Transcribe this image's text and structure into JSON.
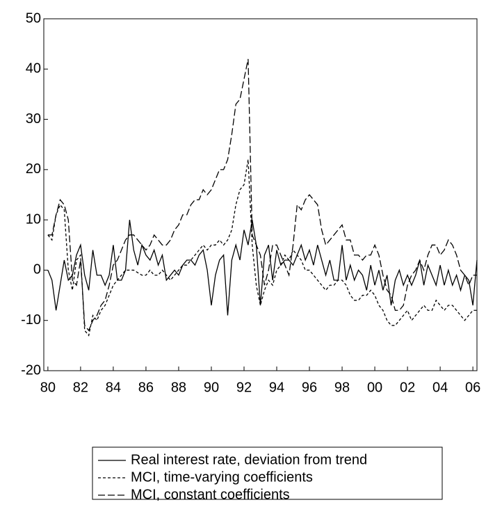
{
  "chart_data": {
    "type": "line",
    "x": [
      1980,
      1980.25,
      1980.5,
      1980.75,
      1981,
      1981.25,
      1981.5,
      1981.75,
      1982,
      1982.25,
      1982.5,
      1982.75,
      1983,
      1983.25,
      1983.5,
      1983.75,
      1984,
      1984.25,
      1984.5,
      1984.75,
      1985,
      1985.25,
      1985.5,
      1985.75,
      1986,
      1986.25,
      1986.5,
      1986.75,
      1987,
      1987.25,
      1987.5,
      1987.75,
      1988,
      1988.25,
      1988.5,
      1988.75,
      1989,
      1989.25,
      1989.5,
      1989.75,
      1990,
      1990.25,
      1990.5,
      1990.75,
      1991,
      1991.25,
      1991.5,
      1991.75,
      1992,
      1992.25,
      1992.5,
      1992.75,
      1993,
      1993.25,
      1993.5,
      1993.75,
      1994,
      1994.25,
      1994.5,
      1994.75,
      1995,
      1995.25,
      1995.5,
      1995.75,
      1996,
      1996.25,
      1996.5,
      1996.75,
      1997,
      1997.25,
      1997.5,
      1997.75,
      1998,
      1998.25,
      1998.5,
      1998.75,
      1999,
      1999.25,
      1999.5,
      1999.75,
      2000,
      2000.25,
      2000.5,
      2000.75,
      2001,
      2001.25,
      2001.5,
      2001.75,
      2002,
      2002.25,
      2002.5,
      2002.75,
      2003,
      2003.25,
      2003.5,
      2003.75,
      2004,
      2004.25,
      2004.5,
      2004.75,
      2005,
      2005.25,
      2005.5,
      2005.75,
      2006,
      2006.25
    ],
    "series": [
      {
        "name": "Real interest rate, deviation from trend",
        "color": "#000000",
        "line_style": "solid",
        "values": [
          0,
          -2,
          -8,
          -3,
          2,
          -2,
          -1,
          3,
          5,
          -1,
          -4,
          4,
          -1,
          -1,
          -3,
          -1,
          5,
          -2,
          -2,
          0,
          10,
          4,
          1,
          5,
          3,
          2,
          4,
          1,
          3,
          -2,
          -1,
          0,
          -1,
          1,
          2,
          2,
          1,
          3,
          4,
          0,
          -7,
          -1,
          2,
          3,
          -9,
          2,
          5,
          2,
          8,
          5,
          10,
          5,
          -7,
          3,
          5,
          -2,
          4,
          1,
          2,
          2,
          1,
          3,
          5,
          2,
          4,
          1,
          5,
          2,
          -1,
          2,
          -2,
          -2,
          5,
          -2,
          1,
          -2,
          0,
          -1,
          -4,
          1,
          -3,
          0,
          -4,
          -1,
          -7,
          -2,
          0,
          -3,
          -1,
          -3,
          -1,
          2,
          -3,
          1,
          -1,
          -3,
          1,
          -3,
          0,
          -3,
          -1,
          -4,
          -1,
          -2,
          -7,
          2
        ]
      },
      {
        "name": "MCI, time-varying coefficients",
        "color": "#000000",
        "line_style": "dotted",
        "values": [
          7,
          6,
          11,
          13,
          12,
          0,
          -4,
          2,
          3,
          -12,
          -13,
          -9,
          -10,
          -8,
          -7,
          -5,
          -3,
          -2,
          -1,
          0,
          0,
          0,
          -0.5,
          -1,
          -1,
          0,
          -1,
          -1,
          0,
          -1,
          -2,
          -1,
          0,
          1,
          1,
          2,
          3,
          4,
          5,
          4,
          5,
          5,
          6,
          5,
          6,
          8,
          13,
          16,
          17,
          22,
          5,
          -3,
          -7,
          -4,
          -2,
          -3,
          0,
          1,
          3,
          2,
          4,
          3,
          2,
          0,
          0,
          -1,
          -2,
          -3,
          -4,
          -3,
          -3,
          -2,
          -2,
          -3,
          -5,
          -6,
          -6,
          -5,
          -5,
          -4,
          -5,
          -7,
          -8,
          -10,
          -11,
          -11,
          -10,
          -9,
          -8,
          -10,
          -9,
          -8,
          -7,
          -8,
          -8,
          -6,
          -7,
          -8,
          -7,
          -7,
          -8,
          -9,
          -10,
          -9,
          -8,
          -8
        ]
      },
      {
        "name": "MCI, constant coefficients",
        "color": "#000000",
        "line_style": "dashed",
        "values": [
          7,
          7,
          11,
          14,
          13,
          10,
          -2,
          -3,
          2,
          -11,
          -12,
          -10,
          -9,
          -7,
          -6,
          -3,
          1,
          2,
          4,
          6,
          7,
          7,
          6,
          5,
          4,
          5,
          7,
          6,
          5,
          5,
          6,
          8,
          9,
          11,
          11,
          13,
          14,
          14,
          16,
          15,
          16,
          18,
          20,
          20,
          22,
          27,
          33,
          34,
          38,
          42,
          7,
          5,
          3,
          -3,
          0,
          5,
          5,
          3,
          1,
          -1,
          5,
          13,
          12,
          14,
          15,
          14,
          13,
          8,
          5,
          6,
          7,
          8,
          9,
          6,
          6,
          3,
          3,
          2,
          3,
          3,
          5,
          3,
          -1,
          -4,
          -5,
          -8,
          -8,
          -7,
          -3,
          -1,
          0,
          2,
          0,
          3,
          5,
          5,
          3,
          4,
          6,
          5,
          3,
          0,
          -1,
          -3,
          -1,
          -1
        ]
      }
    ],
    "xlim": [
      1979.75,
      2006.25
    ],
    "xticks": [
      {
        "value": 1980,
        "label": "80"
      },
      {
        "value": 1982,
        "label": "82"
      },
      {
        "value": 1984,
        "label": "84"
      },
      {
        "value": 1986,
        "label": "86"
      },
      {
        "value": 1988,
        "label": "88"
      },
      {
        "value": 1990,
        "label": "90"
      },
      {
        "value": 1992,
        "label": "92"
      },
      {
        "value": 1994,
        "label": "94"
      },
      {
        "value": 1996,
        "label": "96"
      },
      {
        "value": 1998,
        "label": "98"
      },
      {
        "value": 2000,
        "label": "00"
      },
      {
        "value": 2002,
        "label": "02"
      },
      {
        "value": 2004,
        "label": "04"
      },
      {
        "value": 2006,
        "label": "06"
      }
    ],
    "ylim": [
      -20,
      50
    ],
    "yticks": [
      -20,
      -10,
      0,
      10,
      20,
      30,
      40,
      50
    ],
    "grid": false,
    "legend": "bottom"
  }
}
